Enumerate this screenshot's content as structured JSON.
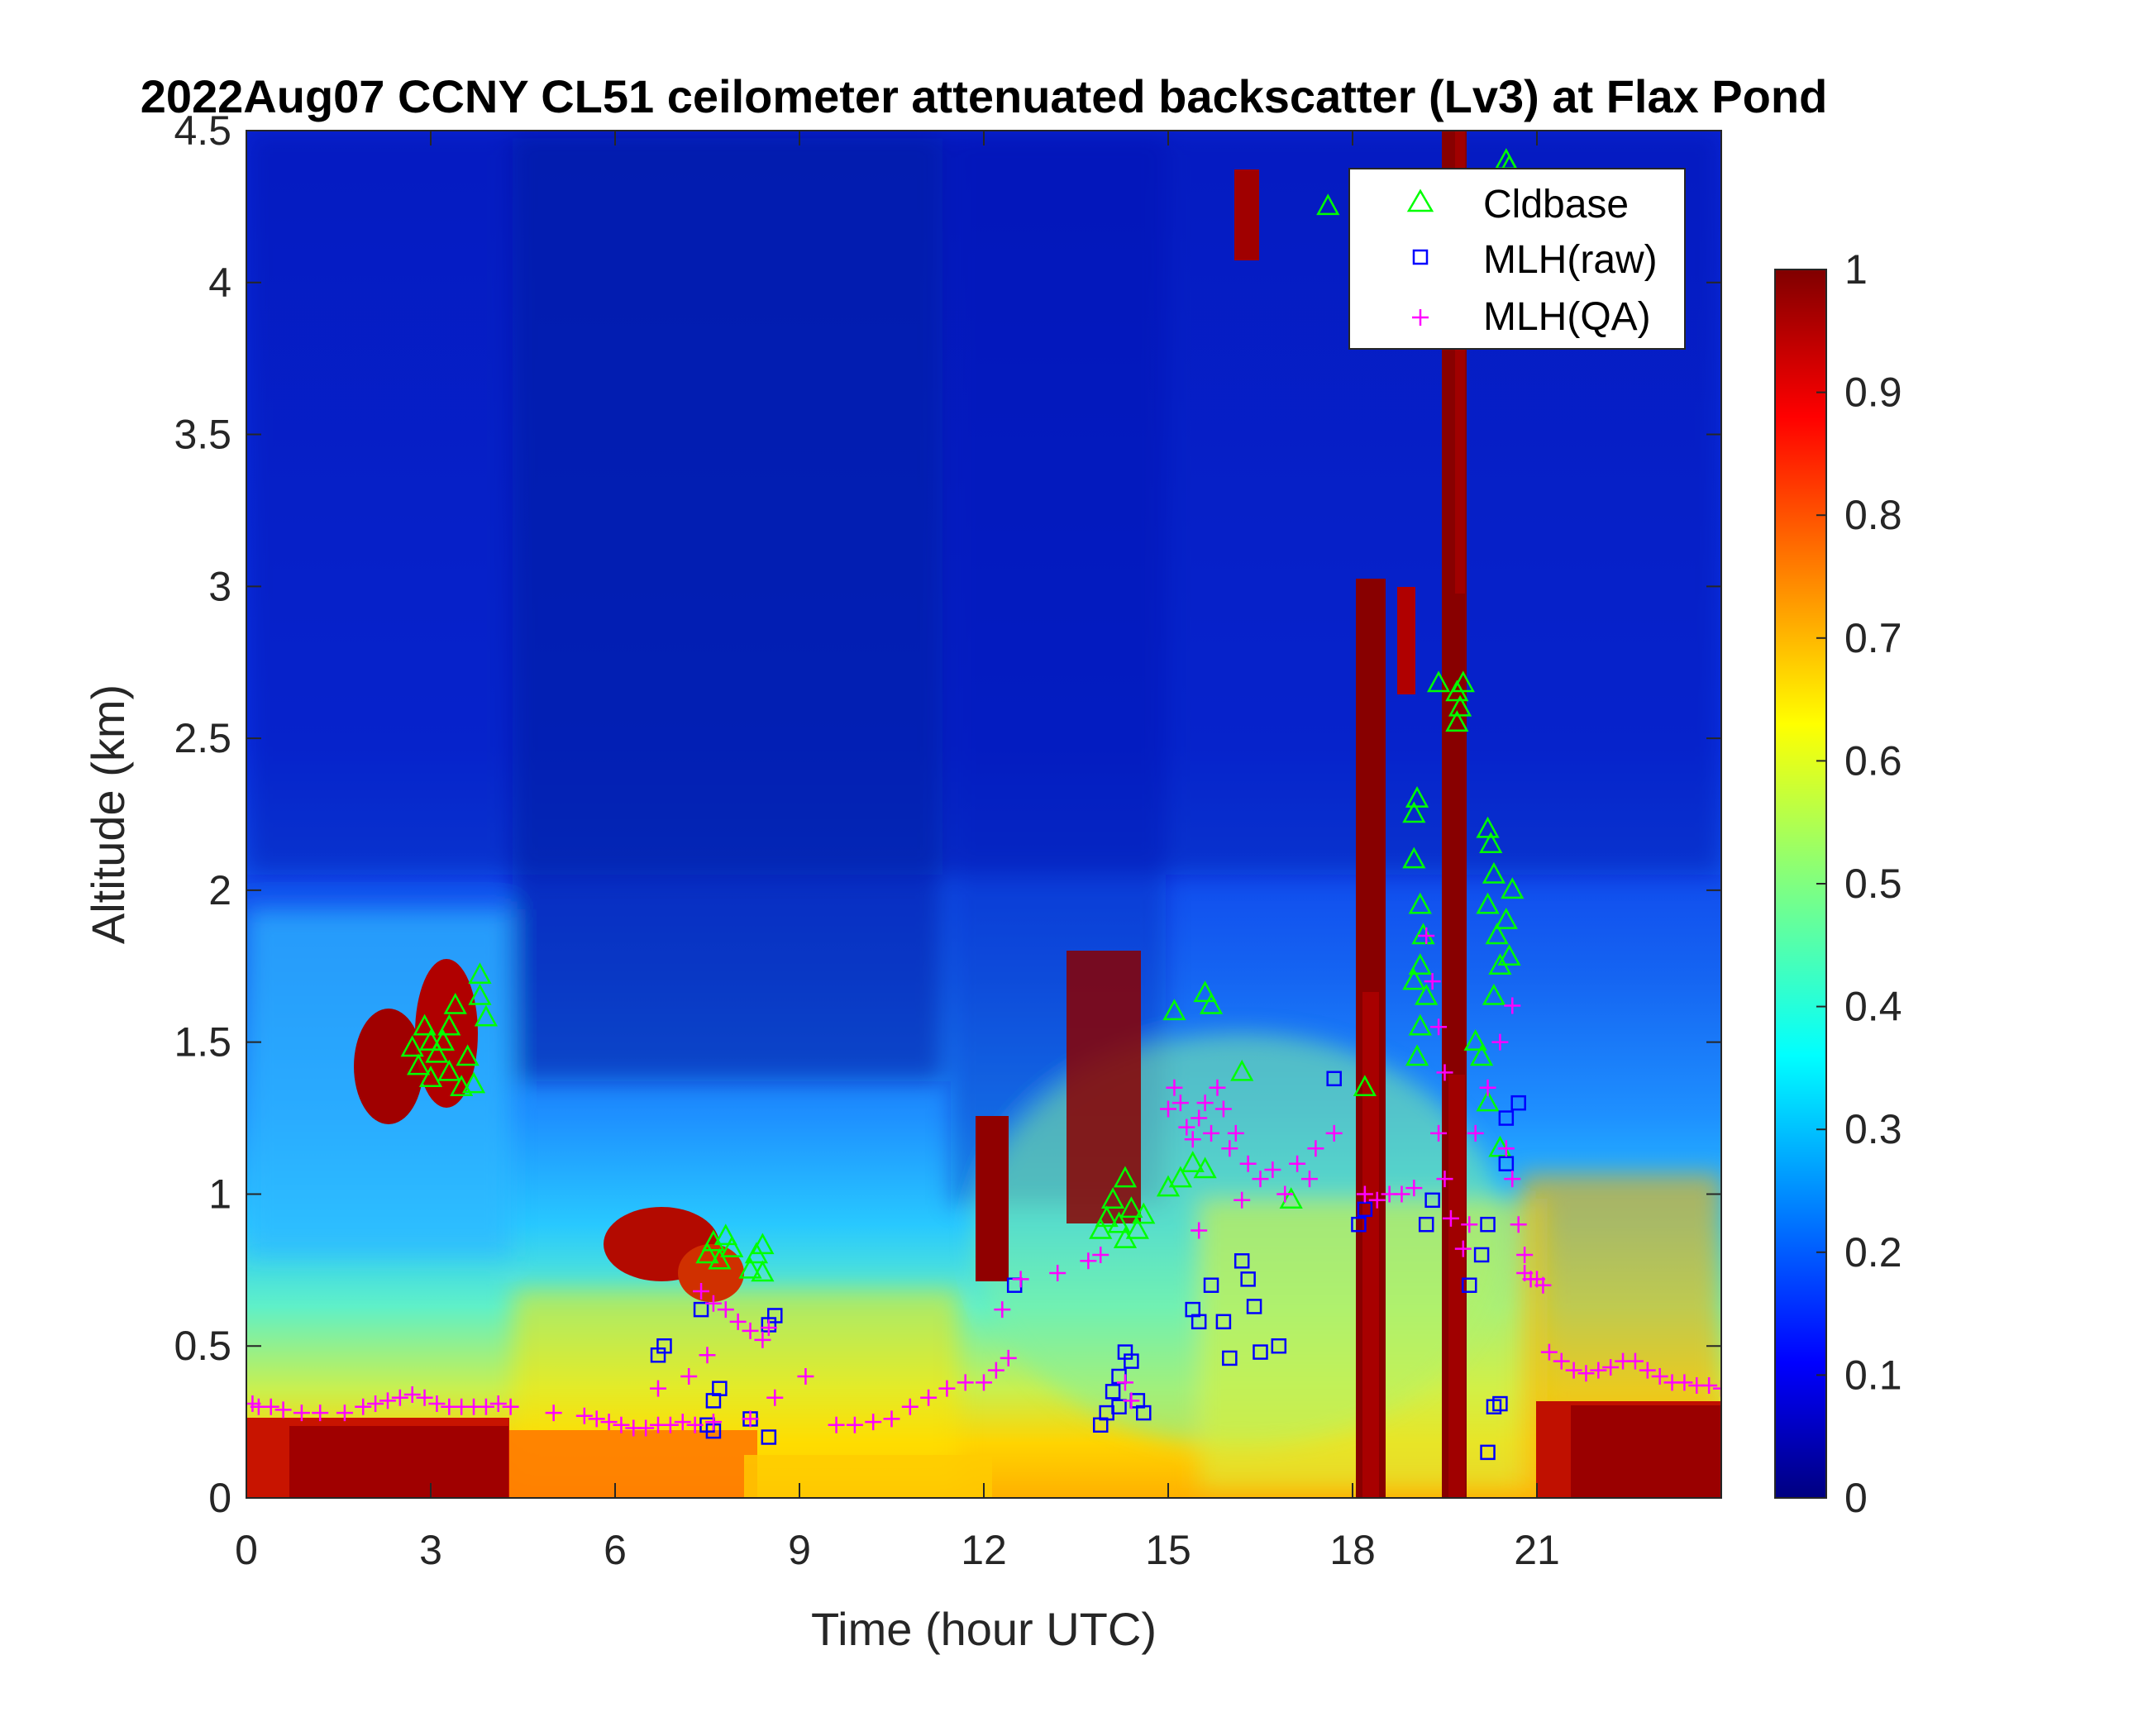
{
  "chart_data": {
    "type": "heatmap",
    "title": "2022Aug07 CCNY CL51 ceilometer attenuated backscatter (Lv3) at Flax Pond",
    "xlabel": "Time (hour UTC)",
    "ylabel": "Altitude (km)",
    "xlim": [
      0,
      24
    ],
    "ylim": [
      0,
      4.5
    ],
    "xticks": [
      0,
      3,
      6,
      9,
      12,
      15,
      18,
      21
    ],
    "xtick_labels": [
      "0",
      "3",
      "6",
      "9",
      "12",
      "15",
      "18",
      "21"
    ],
    "yticks": [
      0,
      0.5,
      1,
      1.5,
      2,
      2.5,
      3,
      3.5,
      4,
      4.5
    ],
    "ytick_labels": [
      "0",
      "0.5",
      "1",
      "1.5",
      "2",
      "2.5",
      "3",
      "3.5",
      "4",
      "4.5"
    ],
    "colorbar": {
      "colormap": "jet",
      "range": [
        0,
        1
      ],
      "ticks": [
        0,
        0.1,
        0.2,
        0.3,
        0.4,
        0.5,
        0.6,
        0.7,
        0.8,
        0.9,
        1
      ],
      "tick_labels": [
        "0",
        "0.1",
        "0.2",
        "0.3",
        "0.4",
        "0.5",
        "0.6",
        "0.7",
        "0.8",
        "0.9",
        "1"
      ]
    },
    "legend": {
      "placement": "top-right",
      "entries": [
        {
          "label": "Cldbase",
          "marker": "triangle",
          "color": "#00ff00"
        },
        {
          "label": "MLH(raw)",
          "marker": "square",
          "color": "#0000ff"
        },
        {
          "label": "MLH(QA)",
          "marker": "plus",
          "color": "#ff00ff"
        }
      ]
    },
    "series": [
      {
        "name": "Cldbase",
        "marker": "triangle",
        "color": "#00ff00",
        "points": [
          [
            2.7,
            1.48
          ],
          [
            2.8,
            1.42
          ],
          [
            2.9,
            1.55
          ],
          [
            3.0,
            1.38
          ],
          [
            3.1,
            1.46
          ],
          [
            3.2,
            1.5
          ],
          [
            3.3,
            1.4
          ],
          [
            3.4,
            1.62
          ],
          [
            3.5,
            1.35
          ],
          [
            3.6,
            1.45
          ],
          [
            3.7,
            1.36
          ],
          [
            3.8,
            1.65
          ],
          [
            3.8,
            1.72
          ],
          [
            3.9,
            1.58
          ],
          [
            3.0,
            1.5
          ],
          [
            3.3,
            1.55
          ],
          [
            7.5,
            0.8
          ],
          [
            7.6,
            0.84
          ],
          [
            7.7,
            0.78
          ],
          [
            7.8,
            0.86
          ],
          [
            7.9,
            0.82
          ],
          [
            8.2,
            0.75
          ],
          [
            8.3,
            0.8
          ],
          [
            8.4,
            0.83
          ],
          [
            8.4,
            0.74
          ],
          [
            13.9,
            0.88
          ],
          [
            14.0,
            0.92
          ],
          [
            14.1,
            0.98
          ],
          [
            14.2,
            0.9
          ],
          [
            14.3,
            1.05
          ],
          [
            14.4,
            0.95
          ],
          [
            14.5,
            0.88
          ],
          [
            14.6,
            0.93
          ],
          [
            14.3,
            0.85
          ],
          [
            15.1,
            1.6
          ],
          [
            15.6,
            1.66
          ],
          [
            15.7,
            1.62
          ],
          [
            15.0,
            1.02
          ],
          [
            15.2,
            1.05
          ],
          [
            15.4,
            1.1
          ],
          [
            15.6,
            1.08
          ],
          [
            16.2,
            1.4
          ],
          [
            17.0,
            0.98
          ],
          [
            17.6,
            4.25
          ],
          [
            18.2,
            1.35
          ],
          [
            19.4,
            2.68
          ],
          [
            19.0,
            2.25
          ],
          [
            19.0,
            2.1
          ],
          [
            19.05,
            2.3
          ],
          [
            19.1,
            1.95
          ],
          [
            19.15,
            1.85
          ],
          [
            19.0,
            1.7
          ],
          [
            19.1,
            1.55
          ],
          [
            19.05,
            1.45
          ],
          [
            19.2,
            1.65
          ],
          [
            19.1,
            1.75
          ],
          [
            19.7,
            2.65
          ],
          [
            19.75,
            2.6
          ],
          [
            19.8,
            2.68
          ],
          [
            19.7,
            2.55
          ],
          [
            20.2,
            2.2
          ],
          [
            20.25,
            2.15
          ],
          [
            20.3,
            2.05
          ],
          [
            20.2,
            1.95
          ],
          [
            20.35,
            1.85
          ],
          [
            20.4,
            1.75
          ],
          [
            20.3,
            1.65
          ],
          [
            20.5,
            1.9
          ],
          [
            20.6,
            2.0
          ],
          [
            20.55,
            1.78
          ],
          [
            20.1,
            1.45
          ],
          [
            20.2,
            1.3
          ],
          [
            20.4,
            1.15
          ],
          [
            20.0,
            1.5
          ],
          [
            20.5,
            4.4
          ],
          [
            20.55,
            4.38
          ]
        ]
      },
      {
        "name": "MLH(raw)",
        "marker": "square",
        "color": "#0000ff",
        "points": [
          [
            6.7,
            0.47
          ],
          [
            6.8,
            0.5
          ],
          [
            7.4,
            0.62
          ],
          [
            7.6,
            0.32
          ],
          [
            7.7,
            0.36
          ],
          [
            7.5,
            0.24
          ],
          [
            7.6,
            0.22
          ],
          [
            8.2,
            0.26
          ],
          [
            8.5,
            0.2
          ],
          [
            8.5,
            0.57
          ],
          [
            8.6,
            0.6
          ],
          [
            12.5,
            0.7
          ],
          [
            13.9,
            0.24
          ],
          [
            14.0,
            0.28
          ],
          [
            14.1,
            0.35
          ],
          [
            14.2,
            0.3
          ],
          [
            14.3,
            0.48
          ],
          [
            14.4,
            0.45
          ],
          [
            14.5,
            0.32
          ],
          [
            14.2,
            0.4
          ],
          [
            14.6,
            0.28
          ],
          [
            15.4,
            0.62
          ],
          [
            15.5,
            0.58
          ],
          [
            15.7,
            0.7
          ],
          [
            15.9,
            0.58
          ],
          [
            16.0,
            0.46
          ],
          [
            16.2,
            0.78
          ],
          [
            16.3,
            0.72
          ],
          [
            16.4,
            0.63
          ],
          [
            16.5,
            0.48
          ],
          [
            16.8,
            0.5
          ],
          [
            17.7,
            1.38
          ],
          [
            18.1,
            0.9
          ],
          [
            18.2,
            0.95
          ],
          [
            19.2,
            0.9
          ],
          [
            19.3,
            0.98
          ],
          [
            19.9,
            0.7
          ],
          [
            20.1,
            0.8
          ],
          [
            20.2,
            0.9
          ],
          [
            20.3,
            0.3
          ],
          [
            20.4,
            0.31
          ],
          [
            20.5,
            1.1
          ],
          [
            20.5,
            1.25
          ],
          [
            20.7,
            1.3
          ],
          [
            20.2,
            0.15
          ]
        ]
      },
      {
        "name": "MLH(QA)",
        "marker": "plus",
        "color": "#ff00ff",
        "points": [
          [
            0.1,
            0.31
          ],
          [
            0.2,
            0.3
          ],
          [
            0.4,
            0.3
          ],
          [
            0.6,
            0.29
          ],
          [
            0.9,
            0.28
          ],
          [
            1.2,
            0.28
          ],
          [
            1.6,
            0.28
          ],
          [
            1.9,
            0.3
          ],
          [
            2.1,
            0.31
          ],
          [
            2.3,
            0.32
          ],
          [
            2.5,
            0.33
          ],
          [
            2.7,
            0.34
          ],
          [
            2.9,
            0.33
          ],
          [
            3.1,
            0.31
          ],
          [
            3.3,
            0.3
          ],
          [
            3.5,
            0.3
          ],
          [
            3.7,
            0.3
          ],
          [
            3.9,
            0.3
          ],
          [
            4.1,
            0.31
          ],
          [
            4.3,
            0.3
          ],
          [
            5.0,
            0.28
          ],
          [
            5.5,
            0.27
          ],
          [
            5.7,
            0.26
          ],
          [
            5.9,
            0.25
          ],
          [
            6.1,
            0.24
          ],
          [
            6.3,
            0.23
          ],
          [
            6.5,
            0.23
          ],
          [
            6.7,
            0.24
          ],
          [
            6.9,
            0.24
          ],
          [
            7.1,
            0.25
          ],
          [
            7.3,
            0.24
          ],
          [
            7.6,
            0.25
          ],
          [
            8.2,
            0.26
          ],
          [
            6.7,
            0.36
          ],
          [
            7.2,
            0.4
          ],
          [
            7.5,
            0.47
          ],
          [
            7.4,
            0.68
          ],
          [
            7.6,
            0.64
          ],
          [
            7.8,
            0.62
          ],
          [
            8.0,
            0.58
          ],
          [
            8.2,
            0.55
          ],
          [
            8.4,
            0.52
          ],
          [
            8.5,
            0.56
          ],
          [
            8.6,
            0.33
          ],
          [
            9.1,
            0.4
          ],
          [
            9.6,
            0.24
          ],
          [
            9.9,
            0.24
          ],
          [
            10.2,
            0.25
          ],
          [
            10.5,
            0.26
          ],
          [
            10.8,
            0.3
          ],
          [
            11.1,
            0.33
          ],
          [
            11.4,
            0.36
          ],
          [
            11.7,
            0.38
          ],
          [
            12.0,
            0.38
          ],
          [
            12.2,
            0.42
          ],
          [
            12.4,
            0.46
          ],
          [
            12.3,
            0.62
          ],
          [
            12.6,
            0.72
          ],
          [
            13.2,
            0.74
          ],
          [
            13.7,
            0.78
          ],
          [
            13.9,
            0.8
          ],
          [
            14.3,
            0.38
          ],
          [
            14.4,
            0.32
          ],
          [
            15.0,
            1.28
          ],
          [
            15.1,
            1.35
          ],
          [
            15.2,
            1.3
          ],
          [
            15.3,
            1.22
          ],
          [
            15.4,
            1.18
          ],
          [
            15.5,
            1.25
          ],
          [
            15.6,
            1.3
          ],
          [
            15.7,
            1.2
          ],
          [
            15.8,
            1.35
          ],
          [
            15.9,
            1.28
          ],
          [
            16.0,
            1.15
          ],
          [
            16.1,
            1.2
          ],
          [
            16.3,
            1.1
          ],
          [
            16.5,
            1.05
          ],
          [
            16.7,
            1.08
          ],
          [
            16.9,
            1.0
          ],
          [
            17.1,
            1.1
          ],
          [
            17.4,
            1.15
          ],
          [
            17.7,
            1.2
          ],
          [
            17.3,
            1.05
          ],
          [
            15.5,
            0.88
          ],
          [
            16.2,
            0.98
          ],
          [
            18.2,
            1.0
          ],
          [
            18.4,
            0.98
          ],
          [
            18.6,
            1.0
          ],
          [
            18.8,
            1.0
          ],
          [
            19.0,
            1.02
          ],
          [
            19.2,
            1.85
          ],
          [
            19.3,
            1.7
          ],
          [
            19.4,
            1.55
          ],
          [
            19.5,
            1.4
          ],
          [
            19.4,
            1.2
          ],
          [
            19.5,
            1.05
          ],
          [
            19.6,
            0.92
          ],
          [
            19.8,
            0.82
          ],
          [
            19.9,
            0.9
          ],
          [
            20.0,
            1.2
          ],
          [
            20.2,
            1.35
          ],
          [
            20.4,
            1.5
          ],
          [
            20.6,
            1.62
          ],
          [
            20.5,
            1.15
          ],
          [
            20.6,
            1.05
          ],
          [
            20.7,
            0.9
          ],
          [
            20.8,
            0.8
          ],
          [
            20.8,
            0.74
          ],
          [
            20.9,
            0.72
          ],
          [
            21.0,
            0.72
          ],
          [
            21.1,
            0.7
          ],
          [
            21.2,
            0.48
          ],
          [
            21.4,
            0.45
          ],
          [
            21.6,
            0.42
          ],
          [
            21.8,
            0.41
          ],
          [
            22.0,
            0.42
          ],
          [
            22.2,
            0.43
          ],
          [
            22.4,
            0.45
          ],
          [
            22.6,
            0.45
          ],
          [
            22.8,
            0.42
          ],
          [
            23.0,
            0.4
          ],
          [
            23.2,
            0.38
          ],
          [
            23.4,
            0.38
          ],
          [
            23.6,
            0.37
          ],
          [
            23.8,
            0.37
          ],
          [
            24.0,
            0.36
          ]
        ]
      }
    ]
  }
}
